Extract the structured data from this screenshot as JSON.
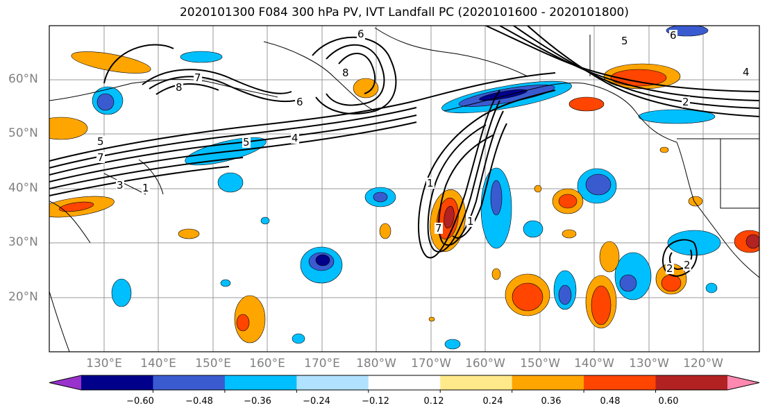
{
  "title": "2020101300 F084 300 hPa PV, IVT Landfall PC (2020101600 - 2020101800)",
  "lat_labels": [
    "60°N",
    "50°N",
    "40°N",
    "30°N",
    "20°N"
  ],
  "lon_labels": [
    "130°E",
    "140°E",
    "150°E",
    "160°E",
    "170°E",
    "180°W",
    "170°W",
    "160°W",
    "150°W",
    "140°W",
    "130°W",
    "120°W"
  ],
  "colorbar": {
    "ticks": [
      "−0.60",
      "−0.48",
      "−0.36",
      "−0.24",
      "−0.12",
      "0.12",
      "0.24",
      "0.36",
      "0.48",
      "0.60"
    ],
    "colors": [
      "#9932cc",
      "#00008b",
      "#3a5bd0",
      "#00bfff",
      "#b0e2ff",
      "#ffffff",
      "#ffe98a",
      "#ffa500",
      "#ff4500",
      "#b22222",
      "#ff88b0"
    ]
  },
  "contour_labels": [
    "6",
    "8",
    "7",
    "8",
    "6",
    "4",
    "5",
    "5",
    "7",
    "3",
    "1",
    "1",
    "7",
    "2",
    "4",
    "5",
    "6",
    "2",
    "2",
    "1"
  ]
}
